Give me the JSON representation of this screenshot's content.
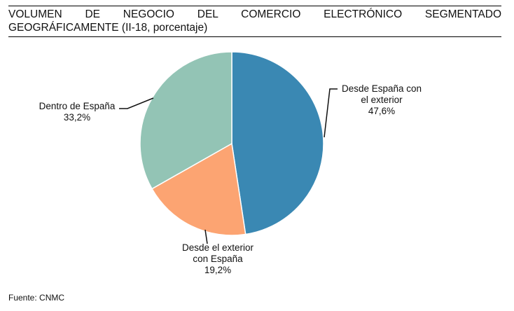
{
  "title_line1": "VOLUMEN DE NEGOCIO DEL COMERCIO ELECTRÓNICO SEGMENTADO",
  "title_line2": "GEOGRÁFICAMENTE (II-18, porcentaje)",
  "source": "Fuente: CNMC",
  "chart_data": {
    "type": "pie",
    "title": "VOLUMEN DE NEGOCIO DEL COMERCIO ELECTRÓNICO SEGMENTADO GEOGRÁFICAMENTE (II-18, porcentaje)",
    "slices": [
      {
        "label": [
          "Desde España con",
          "el exterior"
        ],
        "value_label": "47,6%",
        "value": 47.6,
        "color": "#3a88b3"
      },
      {
        "label": [
          "Desde el exterior",
          "con España"
        ],
        "value_label": "19,2%",
        "value": 19.2,
        "color": "#fca472"
      },
      {
        "label": [
          "Dentro de España"
        ],
        "value_label": "33,2%",
        "value": 33.2,
        "color": "#93c4b5"
      }
    ],
    "start": "12 o'clock",
    "direction": "clockwise",
    "legend": "none"
  }
}
